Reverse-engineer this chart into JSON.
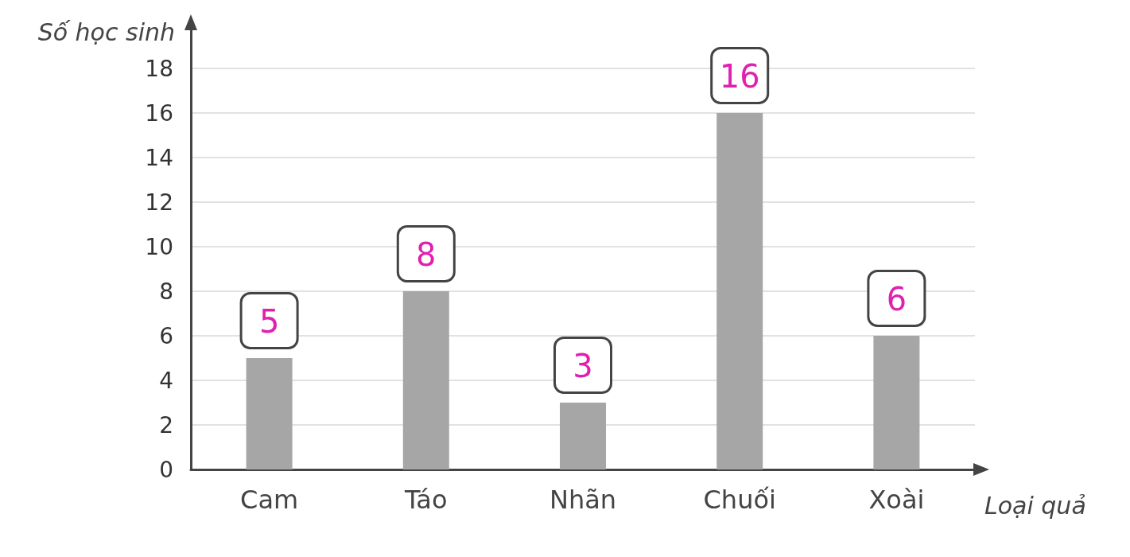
{
  "chart_data": {
    "type": "bar",
    "xlabel": "Loại quả",
    "ylabel": "Số học sinh",
    "categories": [
      "Cam",
      "Táo",
      "Nhãn",
      "Chuối",
      "Xoài"
    ],
    "values": [
      5,
      8,
      3,
      16,
      6
    ],
    "color": "#a6a6a6",
    "ylim": [
      0,
      20
    ],
    "yticks": [
      0,
      2,
      4,
      6,
      8,
      10,
      12,
      14,
      16,
      18
    ],
    "grid": "y",
    "data_labels": true
  }
}
